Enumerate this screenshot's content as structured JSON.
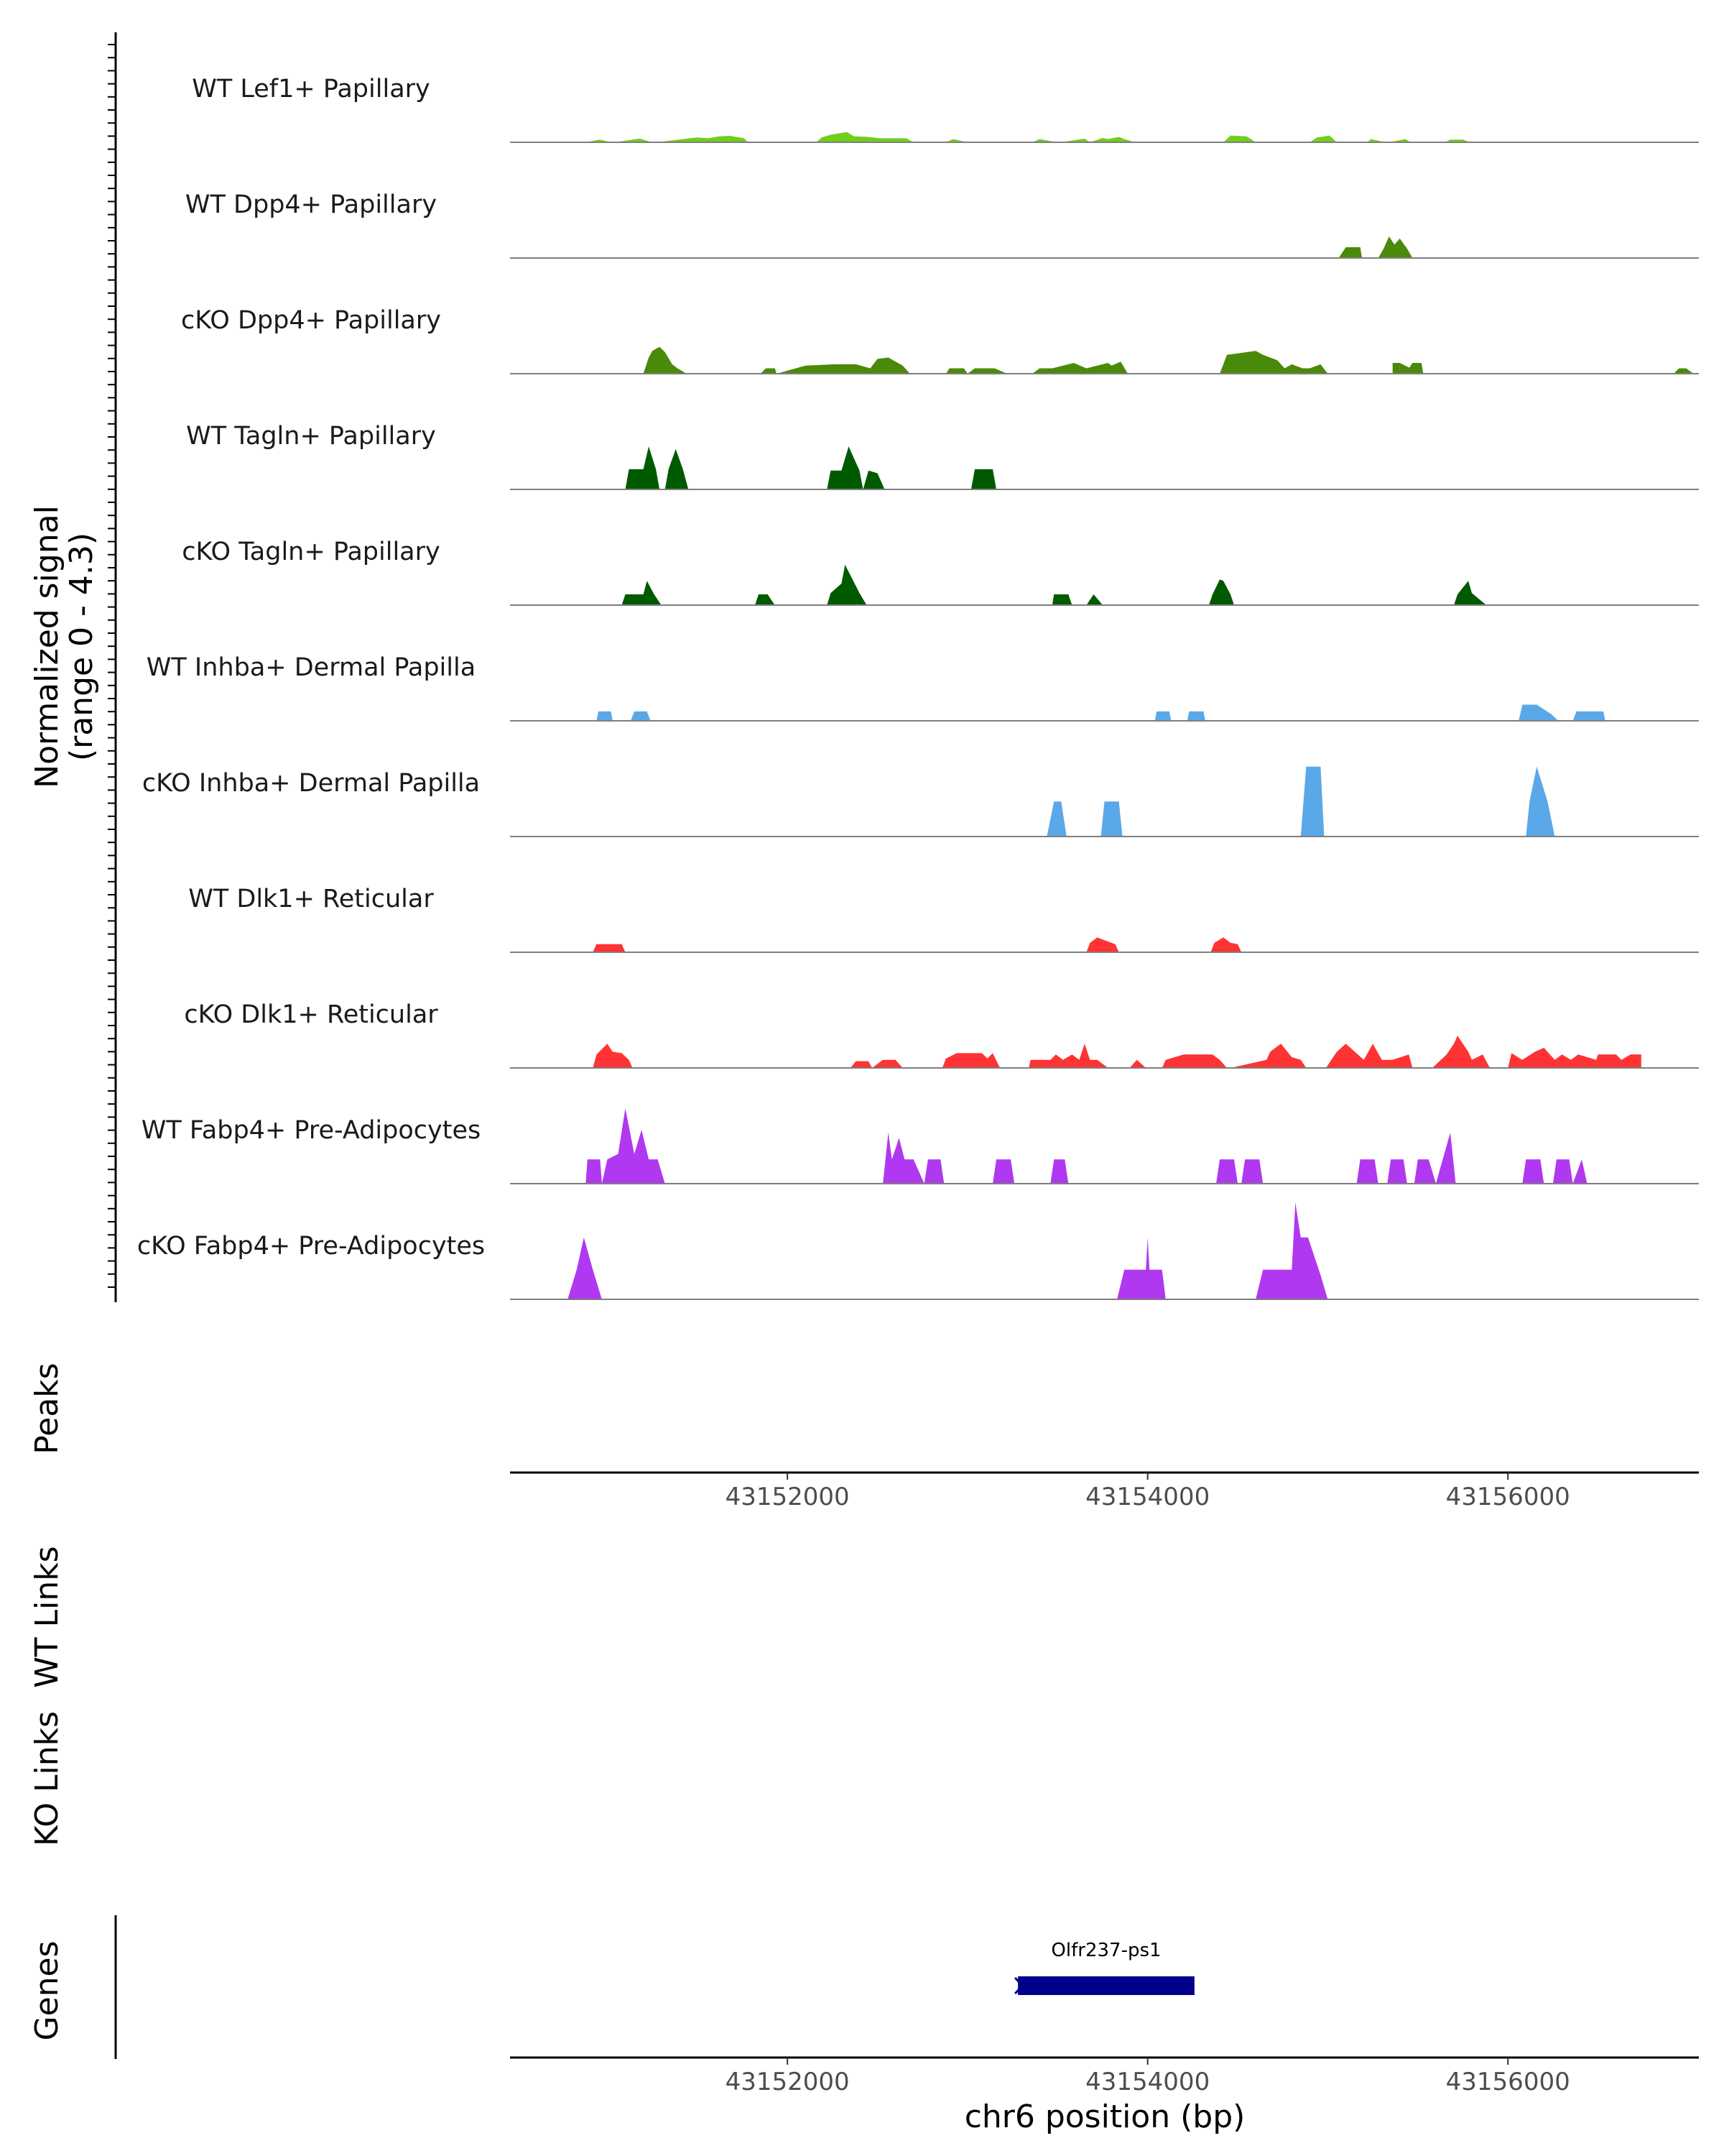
{
  "chart_data": {
    "type": "area",
    "title": "",
    "chromosome": "chr6",
    "xlabel": "chr6 position (bp)",
    "xlim": [
      43150460,
      43157060
    ],
    "xticks": [
      43152000,
      43154000,
      43156000
    ],
    "xtick_labels": [
      "43152000",
      "43154000",
      "43156000"
    ],
    "ylabel": {
      "line1": "Normalized signal",
      "line2": "(range 0 - 4.3)"
    },
    "ylim": [
      0,
      4.3
    ],
    "colors": {
      "lef1": "#6fcf1a",
      "dpp4": "#4a8a0a",
      "tagln": "#005b00",
      "inhba": "#5aa8e8",
      "dlk1": "#ff3333",
      "fabp4": "#b038f0",
      "gene": "#00008b",
      "baseline": "#7f7f7f"
    },
    "series": [
      {
        "name": "WT Lef1+ Papillary",
        "color_key": "lef1",
        "x": [
          43150880,
          43150940,
          43150960,
          43151020,
          43151040,
          43151160,
          43151180,
          43151250,
          43151270,
          43151470,
          43151500,
          43151560,
          43151620,
          43151680,
          43151760,
          43151780,
          43152160,
          43152190,
          43152240,
          43152330,
          43152370,
          43152450,
          43152510,
          43152660,
          43152700,
          43152880,
          43152920,
          43153000,
          43153060,
          43153360,
          43153400,
          43153500,
          43153520,
          43153650,
          43153680,
          43153750,
          43153780,
          43153840,
          43153870,
          43153930,
          43154420,
          43154460,
          43154550,
          43154600,
          43154900,
          43154940,
          43155010,
          43155050,
          43155220,
          43155240,
          43155320,
          43155340,
          43155430,
          43155460,
          43155650,
          43155680,
          43155750,
          43155790
        ],
        "values": [
          0,
          0.08,
          0.1,
          0,
          0,
          0.12,
          0.14,
          0,
          0,
          0.16,
          0.18,
          0.15,
          0.22,
          0.24,
          0.15,
          0,
          0,
          0.18,
          0.28,
          0.38,
          0.22,
          0.2,
          0.15,
          0.15,
          0,
          0,
          0.12,
          0,
          0,
          0,
          0.12,
          0,
          0,
          0.14,
          0,
          0.16,
          0.12,
          0.2,
          0.12,
          0,
          0,
          0.25,
          0.22,
          0,
          0,
          0.18,
          0.25,
          0,
          0,
          0.12,
          0,
          0,
          0.12,
          0,
          0,
          0.1,
          0.1,
          0
        ]
      },
      {
        "name": "WT Dpp4+ Papillary",
        "color_key": "dpp4",
        "x": [
          43155060,
          43155100,
          43155180,
          43155190,
          43155280,
          43155310,
          43155340,
          43155370,
          43155400,
          43155440,
          43155470
        ],
        "values": [
          0,
          0.4,
          0.4,
          0,
          0,
          0.35,
          0.8,
          0.5,
          0.72,
          0.35,
          0
        ],
        "rescale_note": "x positions correspond to the original WT Dpp4+ track"
      },
      {
        "name": "cKO Dpp4+ Papillary",
        "color_key": "dpp4",
        "x": [
          43151200,
          43151230,
          43151250,
          43151290,
          43151320,
          43151360,
          43151390,
          43151440,
          43151850,
          43151880,
          43151930,
          43151940,
          43152100,
          43152260,
          43152380,
          43152460,
          43152500,
          43152560,
          43152640,
          43152680,
          43152880,
          43152900,
          43152980,
          43153000,
          43153040,
          43153150,
          43153220,
          43153360,
          43153400,
          43153470,
          43153560,
          43153590,
          43153660,
          43153780,
          43153800,
          43153850,
          43153890,
          43154400,
          43154440,
          43154600,
          43154640,
          43154720,
          43154760,
          43154800,
          43154860,
          43154900,
          43154960,
          43155000,
          43155100,
          43155260,
          43155280,
          43155310,
          43155360,
          43155360,
          43155400,
          43155520,
          43155600
        ],
        "values": [
          0,
          0.6,
          0.85,
          1.0,
          0.8,
          0.35,
          0.2,
          0,
          0,
          0.2,
          0.2,
          0,
          0.3,
          0.35,
          0.35,
          0.2,
          0.55,
          0.6,
          0.3,
          0,
          0,
          0.2,
          0.2,
          0,
          0.2,
          0.2,
          0,
          0,
          0.2,
          0.2,
          0.35,
          0.4,
          0.2,
          0.4,
          0.3,
          0.45,
          0,
          0,
          0.7,
          0.85,
          0.7,
          0.5,
          0.2,
          0.35,
          0.2,
          0.2,
          0.35,
          0,
          0,
          0,
          0,
          0,
          0,
          0.4,
          0.4,
          0,
          0
        ],
        "extra_x": [
          43155430,
          43155470,
          43155520,
          43155530,
          43155560,
          43155690,
          43155740,
          43155780,
          43156920,
          43156950,
          43156990,
          43157030
        ],
        "extra_values": [
          0,
          0.4,
          0.4,
          0,
          0,
          0,
          0,
          0,
          0,
          0.2,
          0.2,
          0
        ]
      },
      {
        "name": "WT Tagln+ Papillary",
        "color_key": "tagln",
        "x": [
          43151100,
          43151120,
          43151200,
          43151230,
          43151270,
          43151290,
          43151320,
          43151340,
          43151380,
          43151420,
          43151450,
          43152220,
          43152240,
          43152300,
          43152340,
          43152400,
          43152420,
          43152450,
          43152500,
          43152540,
          43153020,
          43153040,
          43153140,
          43153160
        ],
        "values": [
          0,
          0.75,
          0.75,
          1.6,
          0.75,
          0,
          0,
          0.75,
          1.5,
          0.75,
          0,
          0,
          0.7,
          0.7,
          1.6,
          0.7,
          0,
          0.7,
          0.6,
          0,
          0,
          0.75,
          0.75,
          0
        ]
      },
      {
        "name": "cKO Tagln+ Papillary",
        "color_key": "tagln",
        "x": [
          43151080,
          43151100,
          43151200,
          43151220,
          43151260,
          43151300,
          43151820,
          43151840,
          43151890,
          43151930,
          43152220,
          43152240,
          43152300,
          43152320,
          43152400,
          43152440,
          43153470,
          43153480,
          43153560,
          43153580,
          43153660,
          43153700,
          43153750,
          43154340,
          43154360,
          43154400,
          43154420,
          43154460,
          43154480,
          43155700,
          43155720,
          43155780,
          43155800,
          43155880
        ],
        "values": [
          0,
          0.4,
          0.4,
          0.9,
          0.4,
          0,
          0,
          0.4,
          0.4,
          0,
          0,
          0.45,
          0.8,
          1.5,
          0.45,
          0,
          0,
          0.4,
          0.4,
          0,
          0,
          0.4,
          0,
          0,
          0.4,
          0.95,
          0.9,
          0.4,
          0,
          0,
          0.4,
          0.9,
          0.45,
          0
        ],
        "extra_x": [
          43155880
        ],
        "extra_values": [
          0
        ]
      },
      {
        "name": "WT Inhba+ Dermal Papilla",
        "color_key": "inhba",
        "x": [
          43150940,
          43150950,
          43151020,
          43151030,
          43151130,
          43151150,
          43151220,
          43151240,
          43154040,
          43154050,
          43154120,
          43154130,
          43154220,
          43154230,
          43154310,
          43154320,
          43156060,
          43156080,
          43156160,
          43156240,
          43156280,
          43156360,
          43156380,
          43156530,
          43156540
        ],
        "values": [
          0,
          0.35,
          0.35,
          0,
          0,
          0.35,
          0.35,
          0,
          0,
          0.35,
          0.35,
          0,
          0,
          0.35,
          0.35,
          0,
          0,
          0.6,
          0.6,
          0.25,
          0,
          0,
          0.35,
          0.35,
          0
        ]
      },
      {
        "name": "cKO Inhba+ Dermal Papilla",
        "color_key": "inhba",
        "x": [
          43153440,
          43153480,
          43153520,
          43153550,
          43153740,
          43153760,
          43153840,
          43153860,
          43154850,
          43154880,
          43154960,
          43154980,
          43156100,
          43156120,
          43156160,
          43156220,
          43156260
        ],
        "values": [
          0,
          1.3,
          1.3,
          0,
          0,
          1.3,
          1.3,
          0,
          0,
          2.6,
          2.6,
          0,
          0,
          1.3,
          2.6,
          1.3,
          0
        ]
      },
      {
        "name": "WT Dlk1+ Reticular",
        "color_key": "dlk1",
        "x": [
          43150920,
          43150940,
          43151080,
          43151100,
          43153660,
          43153680,
          43153720,
          43153760,
          43153820,
          43153840,
          43154350,
          43154370,
          43154420,
          43154460,
          43154500,
          43154520
        ],
        "values": [
          0,
          0.3,
          0.3,
          0,
          0,
          0.35,
          0.55,
          0.45,
          0.3,
          0,
          0,
          0.35,
          0.55,
          0.35,
          0.3,
          0
        ]
      },
      {
        "name": "cKO Dlk1+ Reticular",
        "color_key": "dlk1",
        "x": [
          43150920,
          43150940,
          43151000,
          43151030,
          43151080,
          43151120,
          43151140,
          43152350,
          43152380,
          43152450,
          43152470,
          43152530,
          43152600,
          43152640,
          43152860,
          43152880,
          43152940,
          43153080,
          43153110,
          43153140,
          43153180,
          43153340,
          43153350,
          43153460,
          43153490,
          43153530,
          43153580,
          43153620,
          43153650,
          43153680,
          43153720,
          43153780,
          43153900,
          43153940,
          43153990,
          43154080,
          43154100,
          43154200,
          43154360,
          43154400,
          43154440,
          43154460,
          43154660,
          43154680,
          43154740,
          43154800,
          43154850,
          43154880,
          43154990,
          43155050,
          43155100,
          43155150,
          43155200,
          43155250,
          43155300,
          43155360,
          43155450,
          43155470,
          43155580,
          43155660,
          43155700,
          43155720,
          43155780,
          43155800,
          43155860,
          43155900,
          43156000,
          43156020,
          43156080,
          43156150,
          43156200,
          43156260,
          43156300,
          43156350,
          43156390,
          43156490,
          43156500,
          43156600,
          43156630,
          43156680,
          43156740,
          43156740
        ],
        "values": [
          0,
          0.5,
          0.9,
          0.6,
          0.55,
          0.3,
          0,
          0,
          0.25,
          0.25,
          0,
          0.3,
          0.3,
          0,
          0,
          0.35,
          0.55,
          0.55,
          0.35,
          0.55,
          0,
          0,
          0.3,
          0.3,
          0.5,
          0.3,
          0.5,
          0.3,
          0.9,
          0.3,
          0.3,
          0,
          0,
          0.3,
          0,
          0,
          0.3,
          0.5,
          0.5,
          0.3,
          0,
          0,
          0.3,
          0.6,
          0.9,
          0.4,
          0.3,
          0,
          0,
          0.6,
          0.9,
          0.6,
          0.3,
          0.9,
          0.3,
          0.3,
          0.5,
          0,
          0,
          0.5,
          0.9,
          1.2,
          0.6,
          0.3,
          0.5,
          0,
          0,
          0.55,
          0.3,
          0.6,
          0.75,
          0.3,
          0.5,
          0.3,
          0.5,
          0.3,
          0.5,
          0.5,
          0.3,
          0.5,
          0.5,
          0
        ]
      },
      {
        "name": "WT Fabp4+ Pre-Adipocytes",
        "color_key": "fabp4",
        "x": [
          43150880,
          43150890,
          43150960,
          43150970,
          43151000,
          43151060,
          43151100,
          43151150,
          43151190,
          43151230,
          43151280,
          43151320,
          43152530,
          43152560,
          43152580,
          43152620,
          43152650,
          43152700,
          43152760,
          43152780,
          43152850,
          43152870,
          43153140,
          43153160,
          43153240,
          43153260,
          43153460,
          43153480,
          43153540,
          43153560,
          43154380,
          43154400,
          43154480,
          43154500,
          43154520,
          43154540,
          43154620,
          43154640,
          43155160,
          43155180,
          43155260,
          43155280,
          43155330,
          43155350,
          43155420,
          43155440,
          43155480,
          43155500,
          43155560,
          43155600,
          43155600,
          43155680,
          43155710,
          43156080,
          43156100,
          43156180,
          43156200,
          43156250,
          43156270,
          43156340,
          43156360,
          43156410,
          43156440
        ],
        "values": [
          0,
          0.9,
          0.9,
          0,
          0.9,
          1.1,
          2.8,
          1.1,
          2.0,
          0.9,
          0.9,
          0,
          0,
          1.9,
          0.9,
          1.7,
          0.9,
          0.9,
          0,
          0.9,
          0.9,
          0,
          0,
          0.9,
          0.9,
          0,
          0,
          0.9,
          0.9,
          0,
          0,
          0.9,
          0.9,
          0,
          0,
          0.9,
          0.9,
          0,
          0,
          0.9,
          0.9,
          0,
          0,
          0.9,
          0.9,
          0,
          0,
          0.9,
          0.9,
          0,
          0,
          1.9,
          0,
          0,
          0.9,
          0.9,
          0,
          0,
          0.9,
          0.9,
          0,
          0.9,
          0
        ]
      },
      {
        "name": "cKO Fabp4+ Pre-Adipocytes",
        "color_key": "fabp4",
        "x": [
          43150780,
          43150830,
          43150870,
          43150920,
          43150970,
          43153830,
          43153870,
          43153990,
          43154000,
          43154010,
          43154080,
          43154100,
          43154600,
          43154640,
          43154800,
          43154820,
          43154850,
          43154890,
          43154960,
          43155000
        ],
        "values": [
          0,
          1.1,
          2.3,
          1.1,
          0,
          0,
          1.1,
          1.1,
          2.3,
          1.1,
          1.1,
          0,
          0,
          1.1,
          1.1,
          3.6,
          2.3,
          2.3,
          0.9,
          0
        ]
      }
    ],
    "track_labels": [
      "WT Lef1+ Papillary",
      "WT Dpp4+ Papillary",
      "cKO Dpp4+ Papillary",
      "WT Tagln+ Papillary",
      "cKO Tagln+ Papillary",
      "WT Inhba+ Dermal Papilla",
      "cKO Inhba+ Dermal Papilla",
      "WT Dlk1+ Reticular",
      "cKO Dlk1+ Reticular",
      "WT Fabp4+ Pre-Adipocytes",
      "cKO Fabp4+ Pre-Adipocytes"
    ],
    "panels": {
      "peaks": "Peaks",
      "wt_links": "WT Links",
      "ko_links": "KO Links",
      "genes": "Genes"
    },
    "genes": [
      {
        "name": "Olfr237-ps1",
        "start": 43153280,
        "end": 43154260,
        "strand": "-"
      }
    ]
  }
}
